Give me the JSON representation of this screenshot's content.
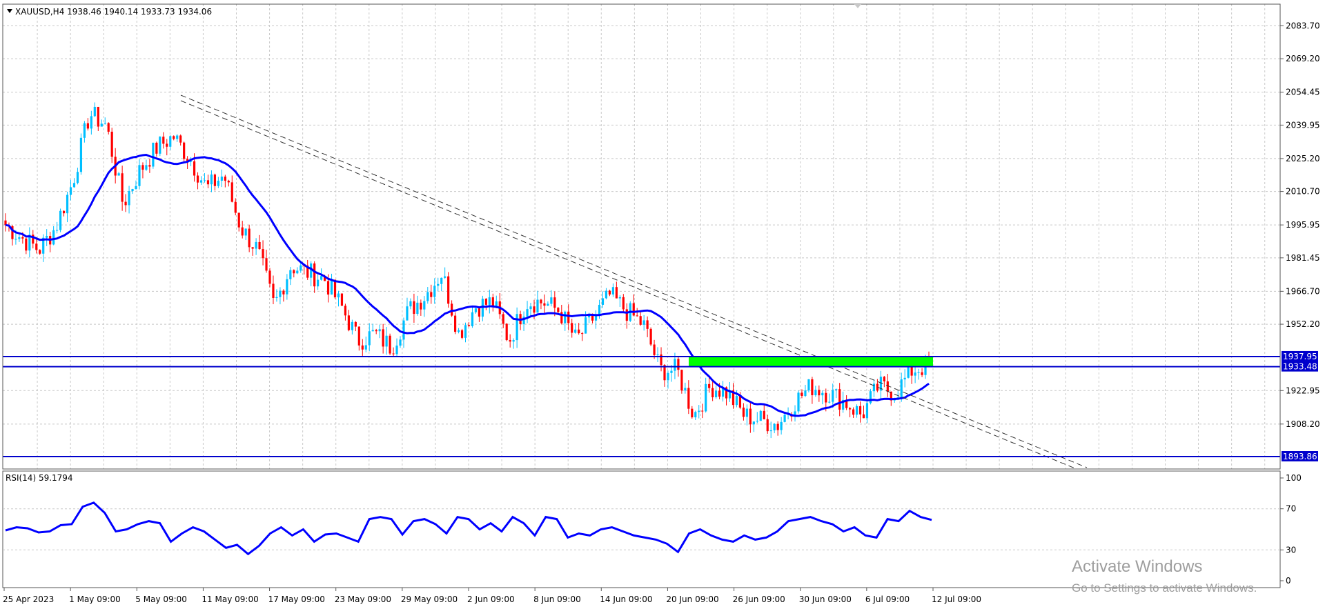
{
  "chart": {
    "header": "XAUUSD,H4  1938.46 1940.14 1933.73 1934.06",
    "price_axis_ticks": [
      "2083.70",
      "2069.20",
      "2054.45",
      "2039.95",
      "2025.20",
      "2010.70",
      "1995.95",
      "1981.45",
      "1966.70",
      "1952.20",
      "1922.95",
      "1908.20"
    ],
    "time_labels": [
      "25 Apr 2023",
      "1 May 09:00",
      "5 May 09:00",
      "11 May 09:00",
      "17 May 09:00",
      "23 May 09:00",
      "29 May 09:00",
      "2 Jun 09:00",
      "8 Jun 09:00",
      "14 Jun 09:00",
      "20 Jun 09:00",
      "26 Jun 09:00",
      "30 Jun 09:00",
      "6 Jul 09:00",
      "12 Jul 09:00"
    ],
    "levels": [
      {
        "label": "1937.95",
        "value": 1937.95
      },
      {
        "label": "1933.48",
        "value": 1933.48
      },
      {
        "label": "1893.86",
        "value": 1893.86
      }
    ],
    "rsi_label": "RSI(14) 59.1794",
    "rsi_ticks": [
      "100",
      "70",
      "30",
      "0"
    ]
  },
  "watermark": {
    "title": "Activate Windows",
    "subtitle": "Go to Settings to activate Windows."
  },
  "colors": {
    "bull": "#00bfff",
    "bear": "#ff0000",
    "ma": "#0000ff",
    "level": "#0000cc",
    "zone": "#00ff00",
    "grid": "#c8c8c8",
    "frame": "#555555"
  },
  "chart_data": [
    {
      "type": "candlestick",
      "title": "XAUUSD,H4",
      "ohlc_last": {
        "open": 1938.46,
        "high": 1940.14,
        "low": 1933.73,
        "close": 1934.06
      },
      "x_range": [
        "25 Apr 2023",
        "12 Jul 09:00"
      ],
      "ylim": [
        1893.86,
        2089.0
      ],
      "grid": true,
      "close_path": [
        [
          "25 Apr 2023",
          1996
        ],
        [
          "28 Apr",
          1990
        ],
        [
          "1 May 09:00",
          1985
        ],
        [
          "2 May",
          1995
        ],
        [
          "3 May",
          2015
        ],
        [
          "4 May",
          2045
        ],
        [
          "5 May 09:00",
          2040
        ],
        [
          "6 May",
          2005
        ],
        [
          "8 May",
          2020
        ],
        [
          "9 May",
          2030
        ],
        [
          "10 May",
          2035
        ],
        [
          "11 May 09:00",
          2025
        ],
        [
          "12 May",
          2012
        ],
        [
          "15 May",
          2018
        ],
        [
          "16 May",
          1995
        ],
        [
          "17 May 09:00",
          1985
        ],
        [
          "18 May",
          1960
        ],
        [
          "19 May",
          1978
        ],
        [
          "22 May",
          1975
        ],
        [
          "23 May 09:00",
          1972
        ],
        [
          "24 May",
          1960
        ],
        [
          "25 May",
          1945
        ],
        [
          "26 May",
          1948
        ],
        [
          "29 May 09:00",
          1942
        ],
        [
          "30 May",
          1958
        ],
        [
          "31 May",
          1965
        ],
        [
          "1 Jun",
          1975
        ],
        [
          "2 Jun 09:00",
          1948
        ],
        [
          "5 Jun",
          1960
        ],
        [
          "6 Jun",
          1962
        ],
        [
          "7 Jun",
          1945
        ],
        [
          "8 Jun 09:00",
          1962
        ],
        [
          "9 Jun",
          1962
        ],
        [
          "12 Jun",
          1958
        ],
        [
          "13 Jun",
          1945
        ],
        [
          "14 Jun 09:00",
          1955
        ],
        [
          "15 Jun",
          1965
        ],
        [
          "16 Jun",
          1958
        ],
        [
          "19 Jun",
          1952
        ],
        [
          "20 Jun 09:00",
          1932
        ],
        [
          "21 Jun",
          1932
        ],
        [
          "22 Jun",
          1912
        ],
        [
          "23 Jun",
          1925
        ],
        [
          "26 Jun 09:00",
          1922
        ],
        [
          "27 Jun",
          1912
        ],
        [
          "28 Jun",
          1910
        ],
        [
          "29 Jun",
          1908
        ],
        [
          "30 Jun 09:00",
          1918
        ],
        [
          "3 Jul",
          1925
        ],
        [
          "4 Jul",
          1922
        ],
        [
          "5 Jul",
          1918
        ],
        [
          "6 Jul 09:00",
          1912
        ],
        [
          "7 Jul",
          1925
        ],
        [
          "10 Jul",
          1922
        ],
        [
          "11 Jul",
          1932
        ],
        [
          "12 Jul",
          1934.06
        ]
      ],
      "overlays": [
        {
          "kind": "moving-average",
          "color": "#0000ff"
        },
        {
          "kind": "trendline-channel",
          "style": "dashed",
          "from": [
            "9 May",
            2047
          ],
          "to": [
            "12 Jul",
            1896
          ]
        },
        {
          "kind": "zone",
          "from": 1933.48,
          "to": 1937.95,
          "start": "20 Jun 09:00",
          "end": "12 Jul 09:00",
          "color": "#00ff00"
        },
        {
          "kind": "horizontal-levels",
          "values": [
            1937.95,
            1933.48,
            1893.86
          ]
        }
      ]
    },
    {
      "type": "line",
      "title": "RSI(14) 59.1794",
      "series": [
        {
          "name": "RSI(14)",
          "last": 59.1794,
          "values": [
            49,
            52,
            51,
            47,
            48,
            54,
            55,
            72,
            76,
            66,
            48,
            50,
            55,
            58,
            56,
            38,
            46,
            52,
            48,
            40,
            32,
            35,
            26,
            34,
            46,
            52,
            44,
            50,
            38,
            45,
            46,
            42,
            38,
            60,
            62,
            60,
            45,
            58,
            60,
            55,
            46,
            62,
            60,
            50,
            56,
            48,
            62,
            56,
            44,
            62,
            60,
            42,
            46,
            44,
            50,
            52,
            48,
            44,
            42,
            40,
            36,
            28,
            46,
            50,
            44,
            40,
            38,
            44,
            40,
            42,
            48,
            58,
            60,
            62,
            58,
            55,
            48,
            52,
            44,
            42,
            60,
            58,
            68,
            62,
            59.18
          ]
        }
      ],
      "ylim": [
        0,
        100
      ],
      "levels": [
        30,
        70
      ]
    }
  ]
}
